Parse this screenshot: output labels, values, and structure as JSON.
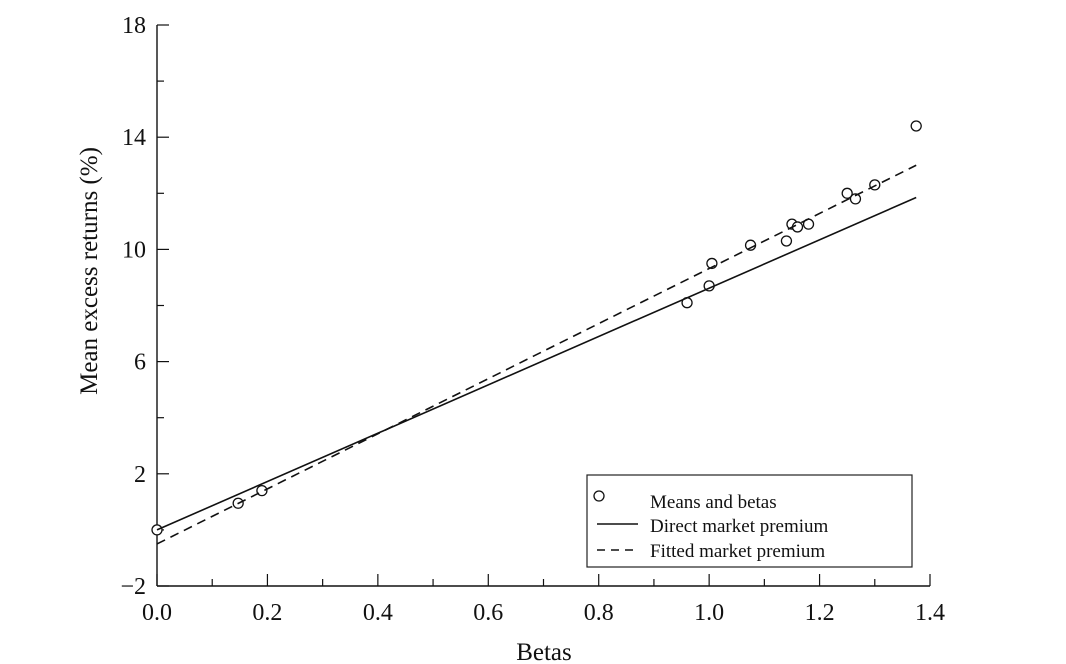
{
  "chart_data": {
    "type": "scatter",
    "xlabel": "Betas",
    "ylabel": "Mean excess returns (%)",
    "xlim": [
      0.0,
      1.4
    ],
    "ylim": [
      -2,
      18
    ],
    "x_ticks": [
      "0.0",
      "0.2",
      "0.4",
      "0.6",
      "0.8",
      "1.0",
      "1.2",
      "1.4"
    ],
    "y_ticks": [
      "−2",
      "2",
      "6",
      "10",
      "14",
      "18"
    ],
    "x_tick_values": [
      0.0,
      0.2,
      0.4,
      0.6,
      0.8,
      1.0,
      1.2,
      1.4
    ],
    "y_tick_values": [
      -2,
      2,
      6,
      10,
      14,
      18
    ],
    "x_minor_step": 0.1,
    "y_minor_step": 2,
    "grid": false,
    "legend_position": "bottom-right",
    "series": [
      {
        "name": "Means and betas",
        "kind": "scatter",
        "marker": "open-circle",
        "points": [
          [
            0.0,
            0.0
          ],
          [
            0.147,
            0.95
          ],
          [
            0.19,
            1.4
          ],
          [
            0.96,
            8.1
          ],
          [
            1.0,
            8.7
          ],
          [
            1.005,
            9.5
          ],
          [
            1.075,
            10.15
          ],
          [
            1.14,
            10.3
          ],
          [
            1.15,
            10.9
          ],
          [
            1.16,
            10.8
          ],
          [
            1.18,
            10.9
          ],
          [
            1.25,
            12.0
          ],
          [
            1.265,
            11.8
          ],
          [
            1.3,
            12.3
          ],
          [
            1.375,
            14.4
          ]
        ]
      },
      {
        "name": "Direct market premium",
        "kind": "line",
        "style": "solid",
        "points": [
          [
            0.0,
            0.0
          ],
          [
            1.375,
            11.85
          ]
        ]
      },
      {
        "name": "Fitted market premium",
        "kind": "line",
        "style": "dashed",
        "points": [
          [
            0.0,
            -0.5
          ],
          [
            1.375,
            13.0
          ]
        ]
      }
    ]
  }
}
